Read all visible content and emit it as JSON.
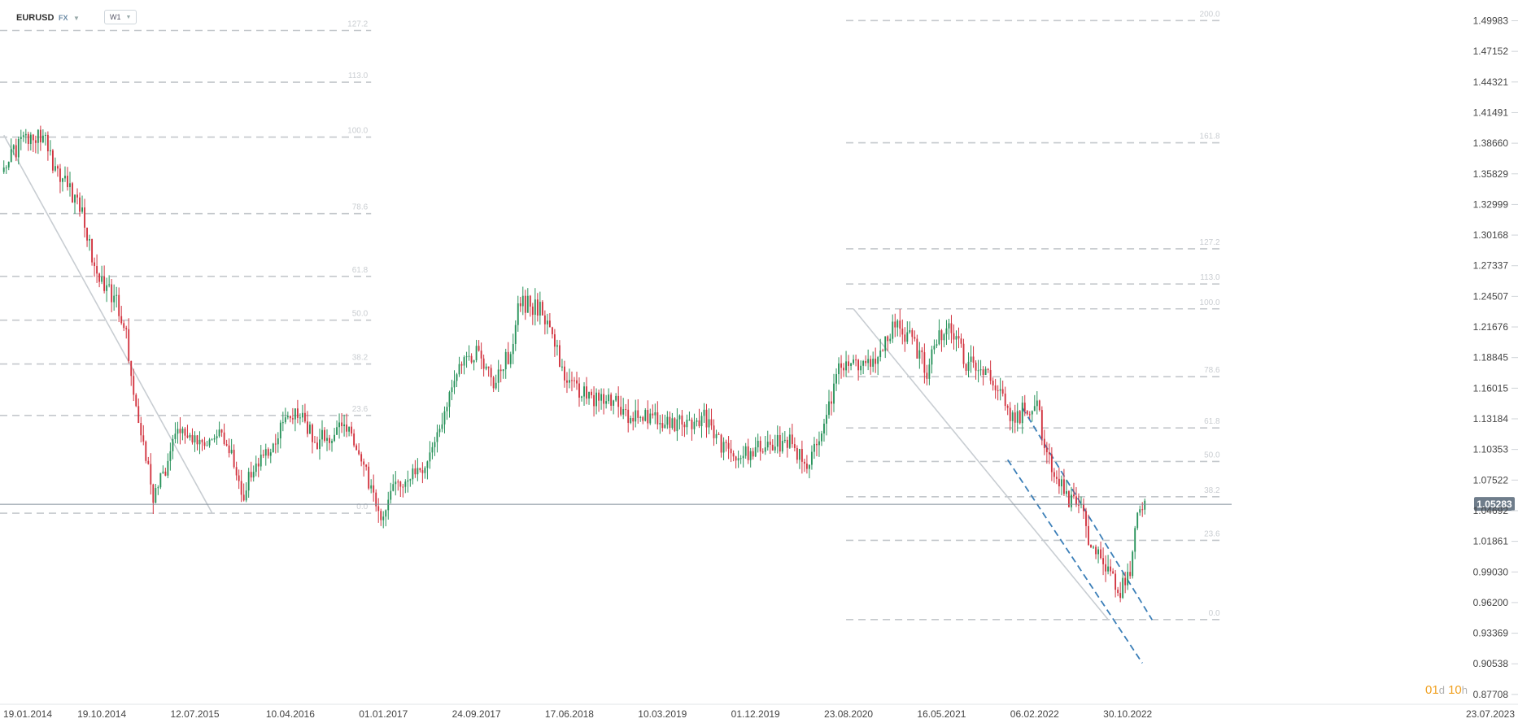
{
  "header": {
    "symbol": "EURUSD",
    "exchange": "FX",
    "timeframe": "W1"
  },
  "countdown": {
    "days": "01",
    "day_unit": "d",
    "hours": "10",
    "hour_unit": "h"
  },
  "colors": {
    "bull": "#27925a",
    "bear": "#d2333f",
    "fib": "#c4c8cc",
    "channel": "#3c7fb8",
    "trend": "#c8cdd2",
    "price_line": "#7d8a96",
    "price_badge": "#6f7d8b"
  },
  "chart_data": {
    "type": "candlestick",
    "instrument": "EURUSD",
    "timeframe": "W1",
    "current_price": 1.05283,
    "current_price_label": "1.05283",
    "y_axis": {
      "ylim": [
        0.8687,
        1.519
      ],
      "ticks": [
        "1.49983",
        "1.47152",
        "1.44321",
        "1.41491",
        "1.38660",
        "1.35829",
        "1.32999",
        "1.30168",
        "1.27337",
        "1.24507",
        "1.21676",
        "1.18845",
        "1.16015",
        "1.13184",
        "1.10353",
        "1.07522",
        "1.04692",
        "1.01861",
        "0.99030",
        "0.96200",
        "0.93369",
        "0.90538",
        "0.87708"
      ]
    },
    "x_axis": {
      "start": "2014-01-01",
      "end": "2023-08-14",
      "ticks": [
        "19.01.2014",
        "19.10.2014",
        "12.07.2015",
        "10.04.2016",
        "01.01.2017",
        "24.09.2017",
        "17.06.2018",
        "10.03.2019",
        "01.12.2019",
        "23.08.2020",
        "16.05.2021",
        "06.02.2022",
        "30.10.2022",
        "23.07.2023"
      ],
      "tick_dates": [
        "2014-01-19",
        "2014-10-19",
        "2015-07-12",
        "2016-04-10",
        "2017-01-01",
        "2017-09-24",
        "2018-06-17",
        "2019-03-10",
        "2019-12-01",
        "2020-08-23",
        "2021-05-16",
        "2022-02-06",
        "2022-10-30",
        "2023-07-23"
      ]
    },
    "price_path": [
      [
        "2014-01-05",
        1.36
      ],
      [
        "2014-03-16",
        1.392
      ],
      [
        "2014-05-11",
        1.392
      ],
      [
        "2014-06-08",
        1.36
      ],
      [
        "2014-07-20",
        1.346
      ],
      [
        "2014-08-31",
        1.313
      ],
      [
        "2014-10-05",
        1.264
      ],
      [
        "2014-11-23",
        1.246
      ],
      [
        "2014-12-28",
        1.21
      ],
      [
        "2015-01-18",
        1.16
      ],
      [
        "2015-03-15",
        1.06
      ],
      [
        "2015-04-26",
        1.09
      ],
      [
        "2015-05-24",
        1.12
      ],
      [
        "2015-06-21",
        1.11
      ],
      [
        "2015-08-16",
        1.11
      ],
      [
        "2015-09-20",
        1.125
      ],
      [
        "2015-10-25",
        1.1
      ],
      [
        "2015-11-29",
        1.06
      ],
      [
        "2015-12-27",
        1.09
      ],
      [
        "2016-02-21",
        1.11
      ],
      [
        "2016-04-24",
        1.14
      ],
      [
        "2016-06-26",
        1.11
      ],
      [
        "2016-08-14",
        1.12
      ],
      [
        "2016-10-02",
        1.12
      ],
      [
        "2016-11-13",
        1.08
      ],
      [
        "2016-12-18",
        1.04
      ],
      [
        "2017-01-22",
        1.065
      ],
      [
        "2017-03-19",
        1.075
      ],
      [
        "2017-04-30",
        1.09
      ],
      [
        "2017-06-25",
        1.14
      ],
      [
        "2017-08-13",
        1.18
      ],
      [
        "2017-09-24",
        1.195
      ],
      [
        "2017-11-05",
        1.165
      ],
      [
        "2017-12-24",
        1.19
      ],
      [
        "2018-01-28",
        1.24
      ],
      [
        "2018-03-25",
        1.235
      ],
      [
        "2018-04-29",
        1.21
      ],
      [
        "2018-06-03",
        1.17
      ],
      [
        "2018-08-12",
        1.15
      ],
      [
        "2018-10-07",
        1.155
      ],
      [
        "2018-11-25",
        1.135
      ],
      [
        "2019-02-10",
        1.135
      ],
      [
        "2019-04-21",
        1.125
      ],
      [
        "2019-06-30",
        1.135
      ],
      [
        "2019-08-18",
        1.11
      ],
      [
        "2019-10-06",
        1.095
      ],
      [
        "2019-11-24",
        1.102
      ],
      [
        "2020-01-26",
        1.108
      ],
      [
        "2020-03-15",
        1.11
      ],
      [
        "2020-04-26",
        1.082
      ],
      [
        "2020-06-07",
        1.125
      ],
      [
        "2020-07-26",
        1.175
      ],
      [
        "2020-09-13",
        1.18
      ],
      [
        "2020-11-08",
        1.18
      ],
      [
        "2021-01-03",
        1.225
      ],
      [
        "2021-03-07",
        1.195
      ],
      [
        "2021-04-04",
        1.175
      ],
      [
        "2021-05-23",
        1.218
      ],
      [
        "2021-06-13",
        1.21
      ],
      [
        "2021-07-25",
        1.185
      ],
      [
        "2021-09-12",
        1.18
      ],
      [
        "2021-10-31",
        1.16
      ],
      [
        "2021-12-05",
        1.13
      ],
      [
        "2022-01-09",
        1.14
      ],
      [
        "2022-02-13",
        1.143
      ],
      [
        "2022-03-13",
        1.1
      ],
      [
        "2022-04-24",
        1.07
      ],
      [
        "2022-05-22",
        1.055
      ],
      [
        "2022-06-19",
        1.05
      ],
      [
        "2022-07-17",
        1.015
      ],
      [
        "2022-08-14",
        1.005
      ],
      [
        "2022-09-18",
        0.98
      ],
      [
        "2022-10-09",
        0.975
      ],
      [
        "2022-11-06",
        0.995
      ],
      [
        "2022-11-27",
        1.04
      ],
      [
        "2022-12-18",
        1.055
      ]
    ],
    "fib_sets": [
      {
        "x_from": "2014-01-01",
        "x_to": "2016-11-27",
        "levels": [
          {
            "label": "127.2",
            "price": 1.4908
          },
          {
            "label": "113.0",
            "price": 1.443
          },
          {
            "label": "100.0",
            "price": 1.3923
          },
          {
            "label": "78.6",
            "price": 1.3215
          },
          {
            "label": "61.8",
            "price": 1.2635
          },
          {
            "label": "50.0",
            "price": 1.223
          },
          {
            "label": "38.2",
            "price": 1.1825
          },
          {
            "label": "23.6",
            "price": 1.135
          },
          {
            "label": "0.0",
            "price": 1.0446
          }
        ]
      },
      {
        "x_from": "2020-08-16",
        "x_to": "2023-07-30",
        "levels": [
          {
            "label": "200.0",
            "price": 1.5
          },
          {
            "label": "161.8",
            "price": 1.387
          },
          {
            "label": "127.2",
            "price": 1.289
          },
          {
            "label": "113.0",
            "price": 1.2565
          },
          {
            "label": "100.0",
            "price": 1.2335
          },
          {
            "label": "78.6",
            "price": 1.1708
          },
          {
            "label": "61.8",
            "price": 1.1234
          },
          {
            "label": "50.0",
            "price": 1.0924
          },
          {
            "label": "38.2",
            "price": 1.0598
          },
          {
            "label": "23.6",
            "price": 1.0195
          },
          {
            "label": "0.0",
            "price": 0.9463
          }
        ]
      }
    ],
    "trendlines": [
      {
        "kind": "solid",
        "from": [
          "2014-01-12",
          1.394
        ],
        "to": [
          "2015-08-30",
          1.045
        ]
      },
      {
        "kind": "solid",
        "from": [
          "2020-09-06",
          1.2335
        ],
        "to": [
          "2022-09-04",
          0.9463
        ]
      },
      {
        "kind": "dashed",
        "from": [
          "2022-01-02",
          1.142
        ],
        "to": [
          "2023-01-08",
          0.946
        ]
      },
      {
        "kind": "dashed",
        "from": [
          "2021-11-21",
          1.094
        ],
        "to": [
          "2022-12-11",
          0.906
        ]
      }
    ]
  }
}
